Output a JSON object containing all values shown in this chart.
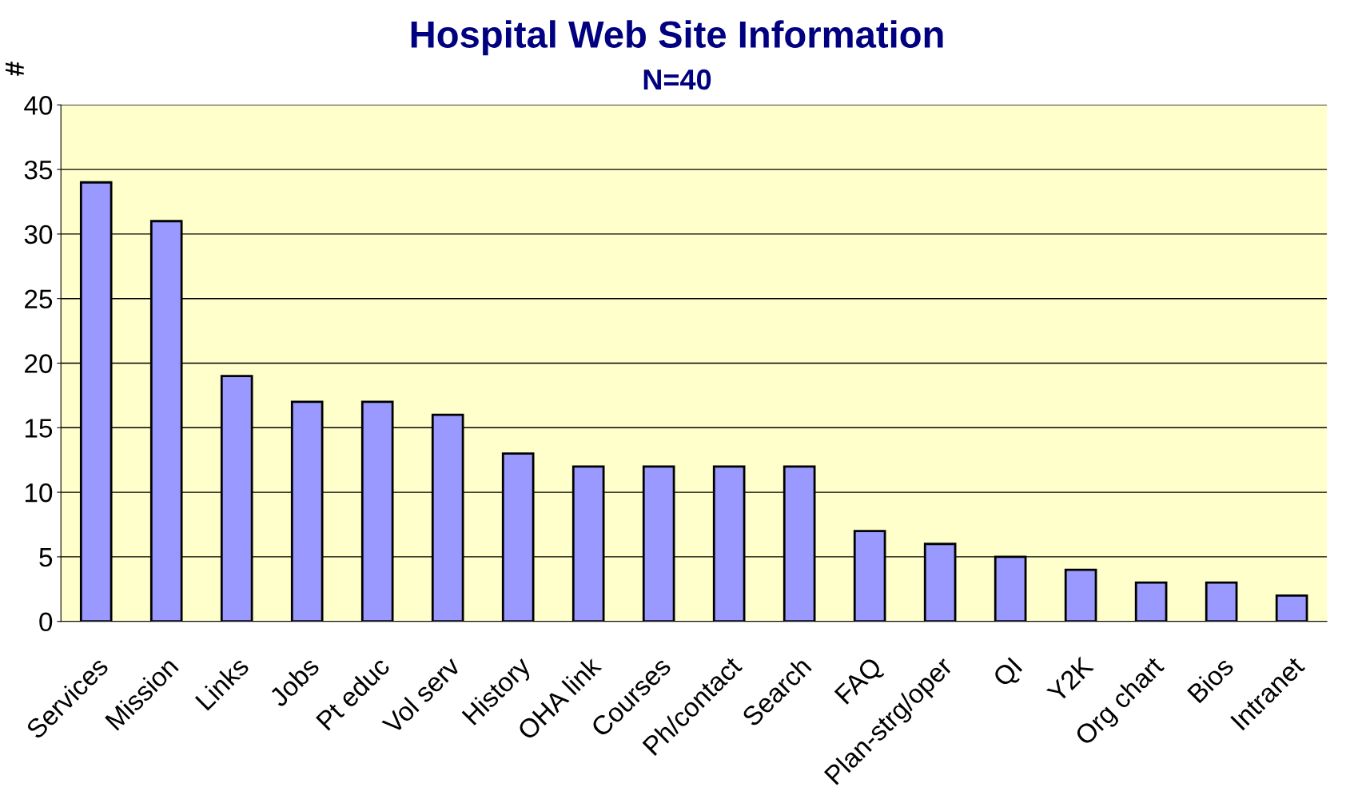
{
  "chart_data": {
    "type": "bar",
    "title": "Hospital Web Site Information",
    "subtitle": "N=40",
    "ylabel": "#",
    "categories": [
      "Services",
      "Mission",
      "Links",
      "Jobs",
      "Pt educ",
      "Vol serv",
      "History",
      "OHA link",
      "Courses",
      "Ph/contact",
      "Search",
      "FAQ",
      "Plan-strg/oper",
      "QI",
      "Y2K",
      "Org chart",
      "Bios",
      "Intranet"
    ],
    "values": [
      34,
      31,
      19,
      17,
      17,
      16,
      13,
      12,
      12,
      12,
      12,
      7,
      6,
      5,
      4,
      3,
      3,
      2
    ],
    "color": "#9999ff",
    "ylim": [
      0,
      40
    ],
    "yticks": [
      0,
      5,
      10,
      15,
      20,
      25,
      30,
      35,
      40
    ],
    "grid": "y"
  }
}
